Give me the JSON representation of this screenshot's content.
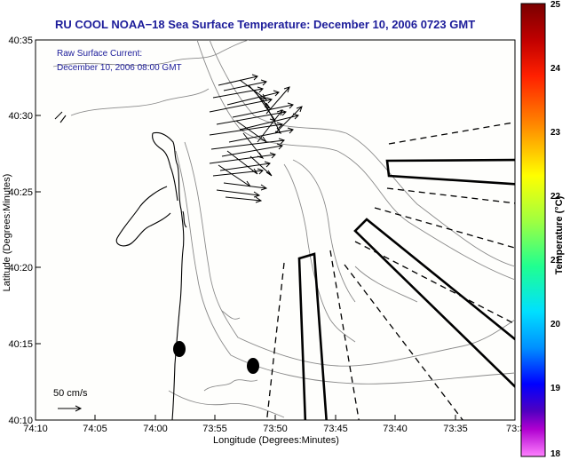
{
  "title": "RU COOL  NOAA−18  Sea Surface Temperature:  December 10, 2006 0723 GMT",
  "annotation": {
    "line1": "Raw Surface Current:",
    "line2": "December 10, 2006 08:00 GMT"
  },
  "scale_label": "50 cm/s",
  "axes": {
    "xlabel": "Longitude (Degrees:Minutes)",
    "ylabel": "Latitude (Degrees:Minutes)",
    "x_ticks": [
      "74:10",
      "74:05",
      "74:00",
      "73:55",
      "73:50",
      "73:45",
      "73:40",
      "73:35",
      "73:3"
    ],
    "y_ticks": [
      "40:35",
      "40:30",
      "40:25",
      "40:20",
      "40:15",
      "40:10"
    ]
  },
  "colorbar": {
    "label": "Temperature (°C)",
    "min": 18,
    "max": 25,
    "ticks": [
      "25",
      "24",
      "23",
      "22",
      "21",
      "20",
      "19",
      "18"
    ]
  },
  "colors": {
    "title": "#1c1c9a",
    "coast": "#000000",
    "bathymetry": "#8a8a8a"
  }
}
